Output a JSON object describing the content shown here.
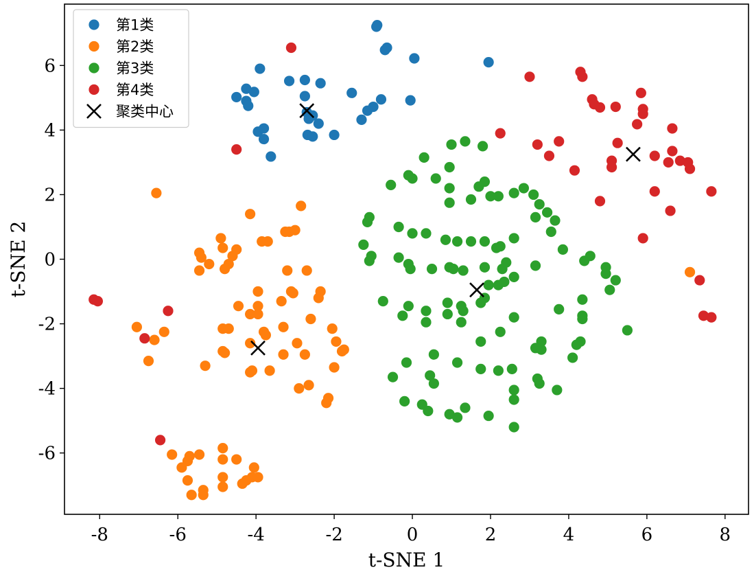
{
  "chart_data": {
    "type": "scatter",
    "title": "",
    "xlabel": "t-SNE 1",
    "ylabel": "t-SNE 2",
    "xlim": [
      -8.9,
      8.6
    ],
    "ylim": [
      -7.9,
      7.9
    ],
    "xticks": [
      -8,
      -6,
      -4,
      -2,
      0,
      2,
      4,
      6,
      8
    ],
    "yticks": [
      -6,
      -4,
      -2,
      0,
      2,
      4,
      6
    ],
    "xtick_labels": [
      "-8",
      "-6",
      "-4",
      "-2",
      "0",
      "2",
      "4",
      "6",
      "8"
    ],
    "ytick_labels": [
      "-6",
      "-4",
      "-2",
      "0",
      "2",
      "4",
      "6"
    ],
    "grid": false,
    "legend_position": "top-left",
    "series": [
      {
        "name": "第1类",
        "color": "#1f77b4",
        "marker": "circle",
        "points": [
          [
            -0.9,
            7.25
          ],
          [
            -0.92,
            7.2
          ],
          [
            -0.65,
            6.55
          ],
          [
            -0.7,
            6.48
          ],
          [
            0.05,
            6.22
          ],
          [
            1.95,
            6.1
          ],
          [
            -3.9,
            5.9
          ],
          [
            -3.15,
            5.52
          ],
          [
            -2.75,
            5.55
          ],
          [
            -2.35,
            5.45
          ],
          [
            -1.55,
            5.15
          ],
          [
            -4.25,
            5.28
          ],
          [
            -4.05,
            5.18
          ],
          [
            -4.5,
            5.02
          ],
          [
            -4.25,
            4.9
          ],
          [
            -4.2,
            4.75
          ],
          [
            -2.75,
            5.05
          ],
          [
            -2.7,
            4.55
          ],
          [
            -2.55,
            4.45
          ],
          [
            -2.65,
            4.35
          ],
          [
            -2.4,
            4.2
          ],
          [
            -0.8,
            4.95
          ],
          [
            -1.0,
            4.72
          ],
          [
            -1.15,
            4.6
          ],
          [
            -1.3,
            4.32
          ],
          [
            -0.05,
            4.92
          ],
          [
            -3.95,
            3.95
          ],
          [
            -3.8,
            4.05
          ],
          [
            -3.8,
            3.72
          ],
          [
            -2.68,
            3.85
          ],
          [
            -2.55,
            3.8
          ],
          [
            -2.0,
            3.85
          ],
          [
            -3.62,
            3.18
          ]
        ]
      },
      {
        "name": "第2类",
        "color": "#ff7f0e",
        "marker": "circle",
        "points": [
          [
            -6.55,
            2.05
          ],
          [
            -2.85,
            1.65
          ],
          [
            -4.15,
            1.4
          ],
          [
            -3.15,
            0.85
          ],
          [
            -3.25,
            0.85
          ],
          [
            -3.0,
            0.9
          ],
          [
            -4.9,
            0.65
          ],
          [
            -3.7,
            0.55
          ],
          [
            -3.85,
            0.55
          ],
          [
            -5.45,
            0.2
          ],
          [
            -4.85,
            0.35
          ],
          [
            -4.5,
            0.3
          ],
          [
            -5.4,
            0.05
          ],
          [
            -4.6,
            0.1
          ],
          [
            -5.2,
            -0.15
          ],
          [
            -4.7,
            -0.15
          ],
          [
            -5.45,
            -0.35
          ],
          [
            -4.8,
            -0.3
          ],
          [
            -3.2,
            -0.35
          ],
          [
            -2.7,
            -0.35
          ],
          [
            -3.95,
            -1.0
          ],
          [
            -3.1,
            -1.0
          ],
          [
            -3.05,
            -1.05
          ],
          [
            -2.35,
            -1.0
          ],
          [
            -2.4,
            -1.2
          ],
          [
            -3.35,
            -1.3
          ],
          [
            -4.45,
            -1.45
          ],
          [
            -3.95,
            -1.45
          ],
          [
            -4.15,
            -1.7
          ],
          [
            -3.95,
            -1.7
          ],
          [
            -2.6,
            -1.85
          ],
          [
            -3.8,
            -2.25
          ],
          [
            -3.75,
            -2.35
          ],
          [
            -4.85,
            -2.15
          ],
          [
            -4.7,
            -2.15
          ],
          [
            -3.3,
            -2.1
          ],
          [
            -2.05,
            -2.15
          ],
          [
            -7.05,
            -2.1
          ],
          [
            -6.35,
            -2.25
          ],
          [
            -6.6,
            -2.5
          ],
          [
            -4.15,
            -2.6
          ],
          [
            -2.95,
            -2.6
          ],
          [
            -1.95,
            -2.55
          ],
          [
            -1.75,
            -2.8
          ],
          [
            -1.8,
            -2.85
          ],
          [
            -4.85,
            -2.85
          ],
          [
            -4.8,
            -2.9
          ],
          [
            -3.3,
            -2.95
          ],
          [
            -2.75,
            -2.95
          ],
          [
            -6.75,
            -3.15
          ],
          [
            -5.3,
            -3.3
          ],
          [
            -4.15,
            -3.5
          ],
          [
            -4.1,
            -3.45
          ],
          [
            -3.65,
            -3.45
          ],
          [
            -2.0,
            -3.35
          ],
          [
            -2.65,
            -3.9
          ],
          [
            -2.9,
            -4.0
          ],
          [
            -2.15,
            -4.3
          ],
          [
            -2.2,
            -4.45
          ],
          [
            7.1,
            -0.4
          ],
          [
            -6.15,
            -6.05
          ],
          [
            -5.45,
            -6.05
          ],
          [
            -5.7,
            -6.1
          ],
          [
            -5.75,
            -6.25
          ],
          [
            -4.85,
            -5.85
          ],
          [
            -4.85,
            -6.2
          ],
          [
            -4.5,
            -6.2
          ],
          [
            -5.9,
            -6.45
          ],
          [
            -4.05,
            -6.45
          ],
          [
            -4.1,
            -6.75
          ],
          [
            -3.95,
            -6.75
          ],
          [
            -5.75,
            -6.85
          ],
          [
            -4.85,
            -6.75
          ],
          [
            -4.25,
            -6.85
          ],
          [
            -4.35,
            -6.95
          ],
          [
            -4.85,
            -7.05
          ],
          [
            -5.35,
            -7.15
          ],
          [
            -5.35,
            -7.3
          ],
          [
            -5.65,
            -7.3
          ]
        ]
      },
      {
        "name": "第3类",
        "color": "#2ca02c",
        "marker": "circle",
        "points": [
          [
            1.35,
            3.65
          ],
          [
            1.0,
            3.55
          ],
          [
            1.8,
            3.5
          ],
          [
            0.3,
            3.15
          ],
          [
            0.95,
            2.85
          ],
          [
            -0.1,
            2.6
          ],
          [
            0.0,
            2.5
          ],
          [
            0.6,
            2.5
          ],
          [
            -0.55,
            2.3
          ],
          [
            1.85,
            2.4
          ],
          [
            1.7,
            2.25
          ],
          [
            0.95,
            2.2
          ],
          [
            2.85,
            2.2
          ],
          [
            2.6,
            2.05
          ],
          [
            3.1,
            2.0
          ],
          [
            2.0,
            1.95
          ],
          [
            2.2,
            1.95
          ],
          [
            1.5,
            1.85
          ],
          [
            0.95,
            1.75
          ],
          [
            3.25,
            1.7
          ],
          [
            3.45,
            1.45
          ],
          [
            -1.1,
            1.3
          ],
          [
            -1.15,
            1.15
          ],
          [
            3.15,
            1.3
          ],
          [
            3.65,
            1.2
          ],
          [
            -0.35,
            1.0
          ],
          [
            3.55,
            0.85
          ],
          [
            0.0,
            0.8
          ],
          [
            0.35,
            0.8
          ],
          [
            0.85,
            0.6
          ],
          [
            1.15,
            0.55
          ],
          [
            1.5,
            0.55
          ],
          [
            1.85,
            0.55
          ],
          [
            2.15,
            0.35
          ],
          [
            2.25,
            0.4
          ],
          [
            -1.25,
            0.45
          ],
          [
            2.6,
            0.65
          ],
          [
            -1.05,
            0.1
          ],
          [
            -0.35,
            0.05
          ],
          [
            -1.1,
            -0.05
          ],
          [
            3.85,
            0.3
          ],
          [
            4.55,
            0.1
          ],
          [
            4.4,
            -0.05
          ],
          [
            -0.1,
            -0.15
          ],
          [
            0.95,
            -0.25
          ],
          [
            1.05,
            -0.3
          ],
          [
            1.3,
            -0.35
          ],
          [
            1.85,
            -0.25
          ],
          [
            2.3,
            -0.3
          ],
          [
            2.4,
            -0.1
          ],
          [
            3.15,
            -0.2
          ],
          [
            -0.05,
            -0.3
          ],
          [
            0.5,
            -0.3
          ],
          [
            4.95,
            -0.25
          ],
          [
            4.95,
            -0.45
          ],
          [
            5.2,
            -0.65
          ],
          [
            5.05,
            -0.95
          ],
          [
            1.95,
            -0.8
          ],
          [
            2.2,
            -0.8
          ],
          [
            2.35,
            -0.7
          ],
          [
            2.6,
            -0.55
          ],
          [
            1.85,
            -1.2
          ],
          [
            1.75,
            -1.35
          ],
          [
            -0.75,
            -1.3
          ],
          [
            -0.1,
            -1.45
          ],
          [
            0.9,
            -1.35
          ],
          [
            1.25,
            -1.45
          ],
          [
            3.75,
            -1.55
          ],
          [
            4.35,
            -1.25
          ],
          [
            0.35,
            -1.6
          ],
          [
            1.3,
            -1.6
          ],
          [
            0.9,
            -1.7
          ],
          [
            4.35,
            -1.85
          ],
          [
            4.35,
            -1.75
          ],
          [
            -0.25,
            -1.75
          ],
          [
            0.35,
            -1.95
          ],
          [
            1.25,
            -1.95
          ],
          [
            2.6,
            -1.8
          ],
          [
            5.5,
            -2.2
          ],
          [
            2.25,
            -2.25
          ],
          [
            1.75,
            -2.55
          ],
          [
            3.3,
            -2.55
          ],
          [
            4.3,
            -2.55
          ],
          [
            4.2,
            -2.65
          ],
          [
            3.15,
            -2.75
          ],
          [
            3.3,
            -2.8
          ],
          [
            0.55,
            -2.95
          ],
          [
            4.1,
            -3.05
          ],
          [
            -0.15,
            -3.2
          ],
          [
            1.15,
            -3.2
          ],
          [
            1.75,
            -3.4
          ],
          [
            2.2,
            -3.45
          ],
          [
            2.55,
            -3.4
          ],
          [
            0.45,
            -3.6
          ],
          [
            -0.5,
            -3.65
          ],
          [
            0.55,
            -3.85
          ],
          [
            3.2,
            -3.7
          ],
          [
            3.25,
            -3.85
          ],
          [
            3.7,
            -4.05
          ],
          [
            2.6,
            -4.05
          ],
          [
            -0.2,
            -4.4
          ],
          [
            0.25,
            -4.5
          ],
          [
            0.4,
            -4.7
          ],
          [
            2.6,
            -4.35
          ],
          [
            0.95,
            -4.8
          ],
          [
            1.15,
            -4.9
          ],
          [
            1.35,
            -4.6
          ],
          [
            1.95,
            -4.85
          ],
          [
            2.6,
            -5.2
          ]
        ]
      },
      {
        "name": "第4类",
        "color": "#d62728",
        "marker": "circle",
        "points": [
          [
            -3.1,
            6.55
          ],
          [
            4.3,
            5.8
          ],
          [
            4.35,
            5.65
          ],
          [
            3.0,
            5.65
          ],
          [
            5.85,
            5.15
          ],
          [
            4.6,
            4.95
          ],
          [
            4.65,
            4.8
          ],
          [
            4.8,
            4.7
          ],
          [
            5.2,
            4.72
          ],
          [
            5.9,
            4.65
          ],
          [
            5.9,
            4.5
          ],
          [
            5.75,
            4.18
          ],
          [
            6.65,
            4.05
          ],
          [
            2.25,
            3.9
          ],
          [
            3.2,
            3.55
          ],
          [
            3.75,
            3.65
          ],
          [
            5.25,
            3.6
          ],
          [
            -4.5,
            3.4
          ],
          [
            6.65,
            3.35
          ],
          [
            3.5,
            3.2
          ],
          [
            6.2,
            3.2
          ],
          [
            5.1,
            3.05
          ],
          [
            6.55,
            3.0
          ],
          [
            6.85,
            3.05
          ],
          [
            7.05,
            3.0
          ],
          [
            5.1,
            2.85
          ],
          [
            7.1,
            2.8
          ],
          [
            4.15,
            2.75
          ],
          [
            6.2,
            2.1
          ],
          [
            7.65,
            2.1
          ],
          [
            4.8,
            1.8
          ],
          [
            6.6,
            1.5
          ],
          [
            5.9,
            0.65
          ],
          [
            -8.15,
            -1.25
          ],
          [
            -8.05,
            -1.3
          ],
          [
            -6.25,
            -1.6
          ],
          [
            7.35,
            -0.65
          ],
          [
            7.45,
            -1.75
          ],
          [
            7.65,
            -1.8
          ],
          [
            -6.85,
            -2.45
          ],
          [
            -6.45,
            -5.6
          ]
        ]
      },
      {
        "name": "聚类中心",
        "color": "#000000",
        "marker": "x",
        "points": [
          [
            -2.7,
            4.6
          ],
          [
            5.65,
            3.25
          ],
          [
            1.65,
            -0.95
          ],
          [
            -3.95,
            -2.75
          ]
        ]
      }
    ]
  }
}
